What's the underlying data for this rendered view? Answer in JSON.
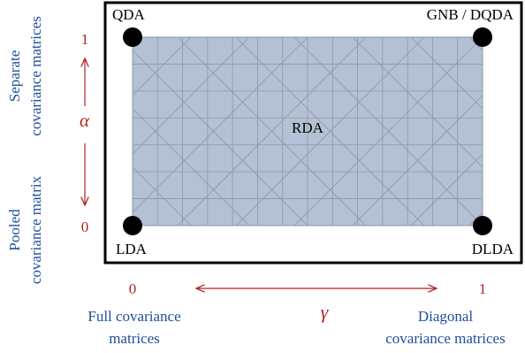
{
  "corners": {
    "top_left": "QDA",
    "top_right": "GNB / DQDA",
    "bottom_left": "LDA",
    "bottom_right": "DLDA"
  },
  "center_label": "RDA",
  "alpha_axis": {
    "symbol": "α",
    "tick_top": "1",
    "tick_bottom": "0"
  },
  "gamma_axis": {
    "symbol": "γ",
    "tick_left": "0",
    "tick_right": "1"
  },
  "side_labels": {
    "top_line1": "Separate",
    "top_line2": "covariance matrices",
    "bottom_line1": "Pooled",
    "bottom_line2": "covariance matrix"
  },
  "bottom_labels": {
    "left_line1": "Full covariance",
    "left_line2": "matrices",
    "right_line1": "Diagonal",
    "right_line2": "covariance matrices"
  },
  "colors": {
    "axis_red": "#b22222",
    "label_blue": "#1f4e9e",
    "region_fill": "#b4c0d4",
    "grid_line": "#8d97a9",
    "frame": "#000000"
  }
}
